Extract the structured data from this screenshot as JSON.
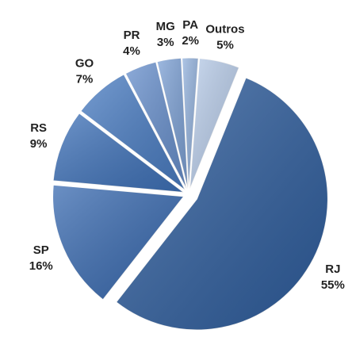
{
  "chart_data": {
    "type": "pie",
    "categories": [
      "RJ",
      "SP",
      "RS",
      "GO",
      "PR",
      "MG",
      "PA",
      "Outros"
    ],
    "values": [
      55,
      16,
      9,
      7,
      4,
      3,
      2,
      5
    ],
    "value_labels": [
      "55%",
      "16%",
      "9%",
      "7%",
      "4%",
      "3%",
      "2%",
      "5%"
    ],
    "colors": [
      "#2f5e9e",
      "#3a6bb1",
      "#3f72b9",
      "#4a7dc3",
      "#6890cd",
      "#7ea2d6",
      "#94b3de",
      "#b9cdea"
    ]
  }
}
